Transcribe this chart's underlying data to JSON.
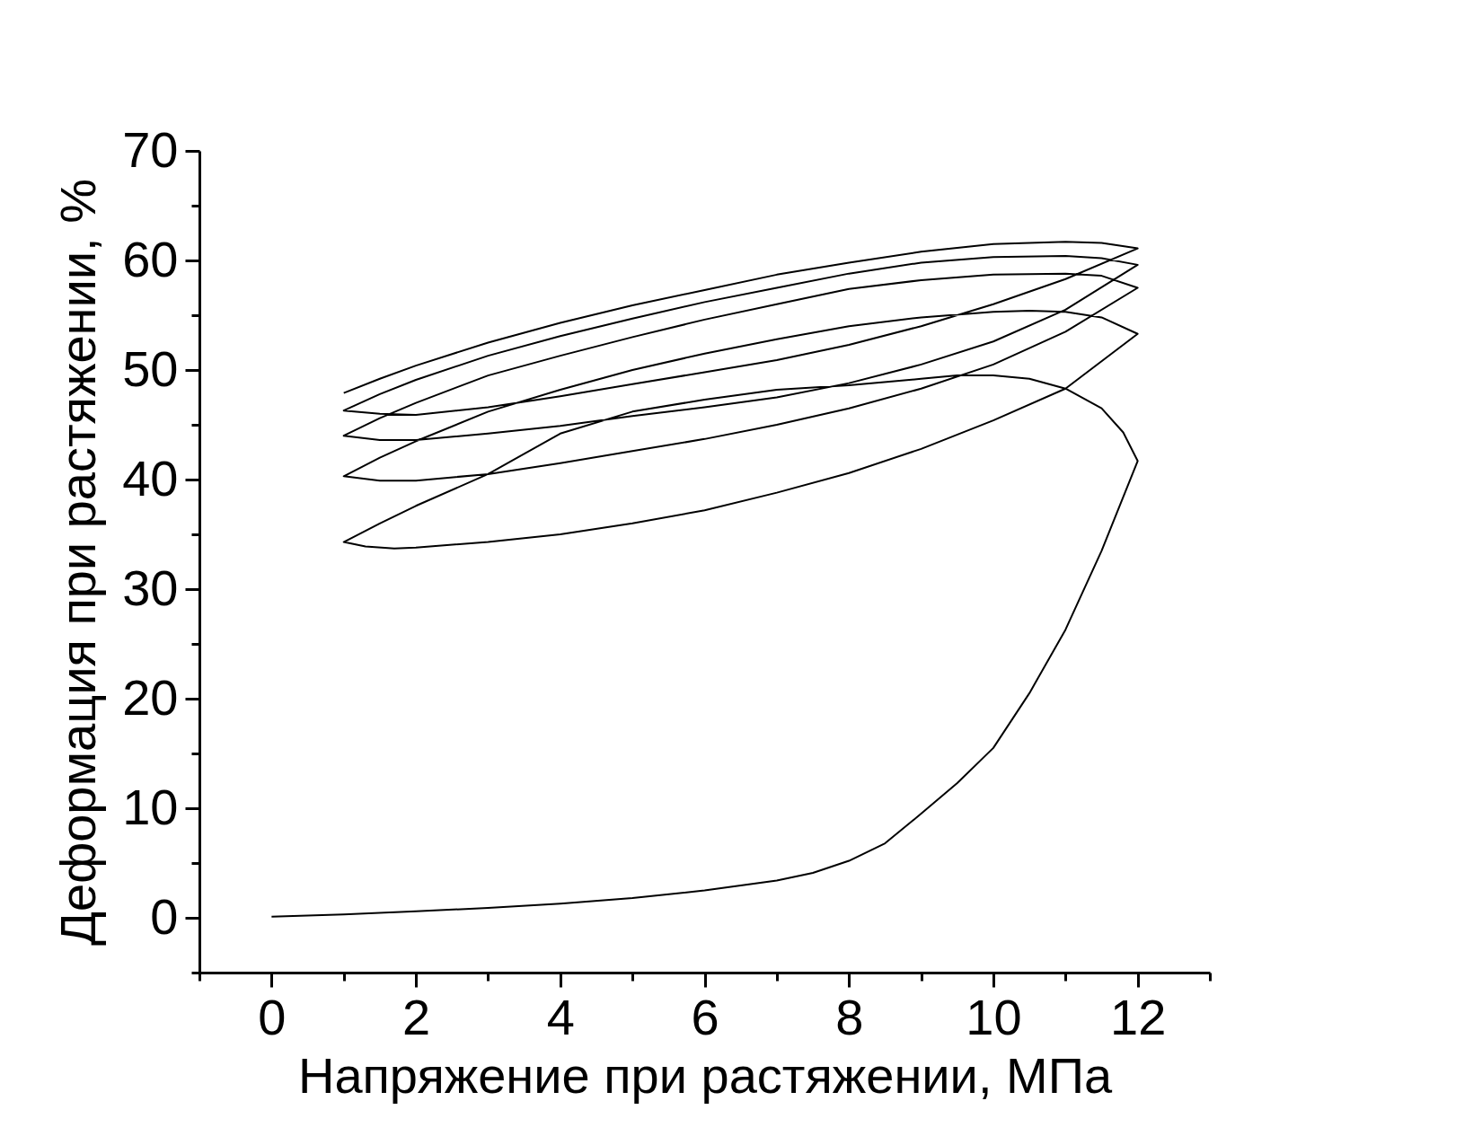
{
  "chart_data": {
    "type": "line",
    "xlabel": "Напряжение при растяжении, МПа",
    "ylabel": "Деформация при растяжении, %",
    "xlim": [
      -1,
      13
    ],
    "ylim": [
      -5,
      70
    ],
    "xticks": [
      {
        "value": -1,
        "label": null
      },
      0,
      {
        "value": 1,
        "label": null
      },
      2,
      {
        "value": 3,
        "label": null
      },
      4,
      {
        "value": 5,
        "label": null
      },
      6,
      {
        "value": 7,
        "label": null
      },
      8,
      {
        "value": 9,
        "label": null
      },
      10,
      {
        "value": 11,
        "label": null
      },
      12,
      {
        "value": 13,
        "label": null
      }
    ],
    "yticks": [
      {
        "value": -5,
        "label": null
      },
      0,
      {
        "value": 5,
        "label": null
      },
      10,
      {
        "value": 15,
        "label": null
      },
      20,
      {
        "value": 25,
        "label": null
      },
      30,
      {
        "value": 35,
        "label": null
      },
      40,
      {
        "value": 45,
        "label": null
      },
      50,
      {
        "value": 55,
        "label": null
      },
      60,
      {
        "value": 65,
        "label": null
      },
      70
    ],
    "grid": false,
    "series": [
      {
        "color": "#000000",
        "x": [
          0,
          1,
          2,
          3,
          4,
          5,
          6,
          7,
          7.5,
          8,
          8.5,
          9,
          9.5,
          10,
          10.5,
          11,
          11.5,
          12,
          11.8,
          11.5,
          11,
          10.5,
          10,
          9.5,
          9,
          8,
          7,
          6,
          5,
          4,
          3,
          2,
          1.5,
          1,
          1.3,
          1.7,
          2,
          3,
          4,
          5,
          6,
          7,
          8,
          9,
          10,
          11,
          12,
          11.5,
          11,
          10.5,
          10,
          9,
          8,
          7,
          6,
          5,
          4,
          3,
          2,
          1.5,
          1,
          1.5,
          2,
          3,
          4,
          5,
          6,
          7,
          8,
          9,
          10,
          11,
          12,
          11.5,
          11,
          10,
          9,
          8,
          7,
          6,
          5,
          4,
          3,
          2,
          1.5,
          1,
          1.5,
          2,
          3,
          4,
          5,
          6,
          7,
          8,
          9,
          10,
          11,
          12,
          11.5,
          11,
          10,
          9,
          8,
          7,
          6,
          5,
          4,
          3,
          2,
          1.5,
          1,
          1.5,
          2,
          3,
          4,
          5,
          6,
          7,
          8,
          9,
          10,
          11,
          12,
          11.5,
          11,
          10,
          9,
          8,
          7,
          6,
          5,
          4,
          3,
          2,
          1.5,
          1
        ],
        "values": [
          0.1,
          0.3,
          0.6,
          0.9,
          1.3,
          1.8,
          2.5,
          3.4,
          4.1,
          5.2,
          6.8,
          9.5,
          12.3,
          15.5,
          20.5,
          26.3,
          33.5,
          41.7,
          44.3,
          46.5,
          48.3,
          49.2,
          49.5,
          49.5,
          49.2,
          48.6,
          48.2,
          47.3,
          46.2,
          44.2,
          40.5,
          37.6,
          36,
          34.3,
          33.9,
          33.7,
          33.8,
          34.3,
          35,
          36,
          37.2,
          38.8,
          40.6,
          42.8,
          45.4,
          48.3,
          53.3,
          54.8,
          55.3,
          55.4,
          55.3,
          54.8,
          54,
          52.8,
          51.5,
          50,
          48.2,
          46.2,
          43.5,
          42,
          40.3,
          39.9,
          39.9,
          40.5,
          41.5,
          42.6,
          43.7,
          45,
          46.5,
          48.3,
          50.5,
          53.5,
          57.5,
          58.6,
          58.8,
          58.7,
          58.2,
          57.4,
          56,
          54.6,
          53,
          51.3,
          49.5,
          47,
          45.6,
          44,
          43.6,
          43.6,
          44.2,
          44.9,
          45.8,
          46.6,
          47.5,
          48.8,
          50.5,
          52.6,
          55.5,
          59.6,
          60.2,
          60.4,
          60.3,
          59.8,
          58.8,
          57.5,
          56.2,
          54.7,
          53.1,
          51.3,
          49.1,
          47.8,
          46.3,
          46,
          45.9,
          46.6,
          47.6,
          48.7,
          49.8,
          50.9,
          52.3,
          54,
          56,
          58.3,
          61.1,
          61.6,
          61.7,
          61.5,
          60.8,
          59.8,
          58.7,
          57.3,
          55.9,
          54.3,
          52.5,
          50.4,
          49.2,
          47.9
        ]
      }
    ]
  }
}
